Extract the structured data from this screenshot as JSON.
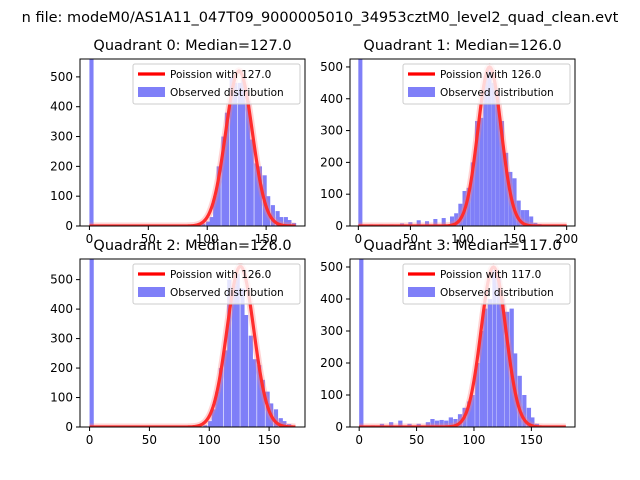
{
  "figure": {
    "suptitle": "n file: modeM0/AS1A11_047T09_9000005010_34953cztM0_level2_quad_clean.evt"
  },
  "colors": {
    "hist": "#7f7ff8",
    "fit": "#ff0000",
    "fit_alpha_peak": "#ff8080"
  },
  "chart_data": [
    {
      "type": "bar",
      "title": "Quadrant 0: Median=127.0",
      "median": 127.0,
      "xlim": [
        -8,
        183
      ],
      "ylim": [
        0,
        560
      ],
      "xticks": [
        "0",
        "50",
        "100",
        "150"
      ],
      "xtick_values": [
        0,
        50,
        100,
        150
      ],
      "yticks": [
        "0",
        "100",
        "200",
        "300",
        "400",
        "500"
      ],
      "ytick_values": [
        0,
        100,
        200,
        300,
        400,
        500
      ],
      "legend": [
        "Poission with 127.0",
        "Observed distribution"
      ],
      "bin_width": 3.5,
      "bins": [
        [
          0,
          560
        ],
        [
          70,
          2
        ],
        [
          74,
          3
        ],
        [
          80,
          2
        ],
        [
          84,
          3
        ],
        [
          95,
          8
        ],
        [
          99,
          15
        ],
        [
          102,
          30
        ],
        [
          105,
          100
        ],
        [
          108,
          200
        ],
        [
          112,
          300
        ],
        [
          115,
          380
        ],
        [
          119,
          500
        ],
        [
          122,
          480
        ],
        [
          126,
          480
        ],
        [
          129,
          500
        ],
        [
          133,
          420
        ],
        [
          136,
          290
        ],
        [
          140,
          210
        ],
        [
          143,
          200
        ],
        [
          147,
          170
        ],
        [
          150,
          100
        ],
        [
          154,
          70
        ],
        [
          158,
          50
        ],
        [
          161,
          30
        ],
        [
          165,
          30
        ],
        [
          168,
          20
        ],
        [
          172,
          10
        ]
      ],
      "curve_max": 520,
      "curve_sigma": 11.3
    },
    {
      "type": "bar",
      "title": "Quadrant 1: Median=126.0",
      "median": 126.0,
      "xlim": [
        -8,
        208
      ],
      "ylim": [
        0,
        525
      ],
      "xticks": [
        "0",
        "50",
        "100",
        "150",
        "200"
      ],
      "xtick_values": [
        0,
        50,
        100,
        150,
        200
      ],
      "yticks": [
        "0",
        "100",
        "200",
        "300",
        "400",
        "500"
      ],
      "ytick_values": [
        0,
        100,
        200,
        300,
        400,
        500
      ],
      "legend": [
        "Poission with 126.0",
        "Observed distribution"
      ],
      "bin_width": 3.9,
      "bins": [
        [
          0,
          525
        ],
        [
          10,
          5
        ],
        [
          20,
          5
        ],
        [
          30,
          5
        ],
        [
          40,
          8
        ],
        [
          48,
          12
        ],
        [
          56,
          18
        ],
        [
          64,
          15
        ],
        [
          72,
          22
        ],
        [
          80,
          25
        ],
        [
          88,
          30
        ],
        [
          92,
          40
        ],
        [
          96,
          70
        ],
        [
          100,
          110
        ],
        [
          104,
          120
        ],
        [
          108,
          200
        ],
        [
          112,
          330
        ],
        [
          116,
          340
        ],
        [
          120,
          470
        ],
        [
          124,
          500
        ],
        [
          128,
          450
        ],
        [
          132,
          420
        ],
        [
          136,
          330
        ],
        [
          140,
          230
        ],
        [
          144,
          170
        ],
        [
          148,
          150
        ],
        [
          152,
          80
        ],
        [
          156,
          50
        ],
        [
          160,
          50
        ],
        [
          164,
          30
        ],
        [
          168,
          10
        ],
        [
          172,
          6
        ]
      ],
      "curve_max": 500,
      "curve_sigma": 11.2
    },
    {
      "type": "bar",
      "title": "Quadrant 2: Median=126.0",
      "median": 126.0,
      "xlim": [
        -8,
        180
      ],
      "ylim": [
        0,
        570
      ],
      "xticks": [
        "0",
        "50",
        "100",
        "150"
      ],
      "xtick_values": [
        0,
        50,
        100,
        150
      ],
      "yticks": [
        "0",
        "100",
        "200",
        "300",
        "400",
        "500"
      ],
      "ytick_values": [
        0,
        100,
        200,
        300,
        400,
        500
      ],
      "legend": [
        "Poission with 126.0",
        "Observed distribution"
      ],
      "bin_width": 3.5,
      "bins": [
        [
          0,
          570
        ],
        [
          70,
          2
        ],
        [
          80,
          3
        ],
        [
          95,
          6
        ],
        [
          99,
          20
        ],
        [
          102,
          60
        ],
        [
          105,
          120
        ],
        [
          108,
          200
        ],
        [
          112,
          260
        ],
        [
          115,
          500
        ],
        [
          119,
          480
        ],
        [
          122,
          520
        ],
        [
          126,
          470
        ],
        [
          129,
          380
        ],
        [
          133,
          310
        ],
        [
          136,
          230
        ],
        [
          140,
          210
        ],
        [
          143,
          160
        ],
        [
          147,
          120
        ],
        [
          150,
          80
        ],
        [
          154,
          60
        ],
        [
          158,
          30
        ],
        [
          161,
          20
        ],
        [
          165,
          10
        ],
        [
          168,
          5
        ]
      ],
      "curve_max": 545,
      "curve_sigma": 11.2
    },
    {
      "type": "bar",
      "title": "Quadrant 3: Median=117.0",
      "median": 117.0,
      "xlim": [
        -8,
        188
      ],
      "ylim": [
        0,
        525
      ],
      "xticks": [
        "0",
        "50",
        "100",
        "150"
      ],
      "xtick_values": [
        0,
        50,
        100,
        150
      ],
      "yticks": [
        "0",
        "100",
        "200",
        "300",
        "400",
        "500"
      ],
      "ytick_values": [
        0,
        100,
        200,
        300,
        400,
        500
      ],
      "legend": [
        "Poission with 117.0",
        "Observed distribution"
      ],
      "bin_width": 3.7,
      "bins": [
        [
          0,
          525
        ],
        [
          10,
          5
        ],
        [
          18,
          10
        ],
        [
          26,
          15
        ],
        [
          34,
          20
        ],
        [
          42,
          10
        ],
        [
          50,
          10
        ],
        [
          58,
          15
        ],
        [
          62,
          25
        ],
        [
          66,
          20
        ],
        [
          70,
          22
        ],
        [
          74,
          20
        ],
        [
          78,
          30
        ],
        [
          82,
          25
        ],
        [
          86,
          40
        ],
        [
          90,
          60
        ],
        [
          94,
          80
        ],
        [
          97,
          100
        ],
        [
          101,
          200
        ],
        [
          105,
          300
        ],
        [
          108,
          370
        ],
        [
          112,
          400
        ],
        [
          116,
          490
        ],
        [
          120,
          470
        ],
        [
          123,
          400
        ],
        [
          127,
          360
        ],
        [
          131,
          370
        ],
        [
          134,
          230
        ],
        [
          138,
          160
        ],
        [
          142,
          100
        ],
        [
          146,
          60
        ],
        [
          149,
          30
        ],
        [
          153,
          10
        ]
      ],
      "curve_max": 500,
      "curve_sigma": 10.8
    }
  ]
}
